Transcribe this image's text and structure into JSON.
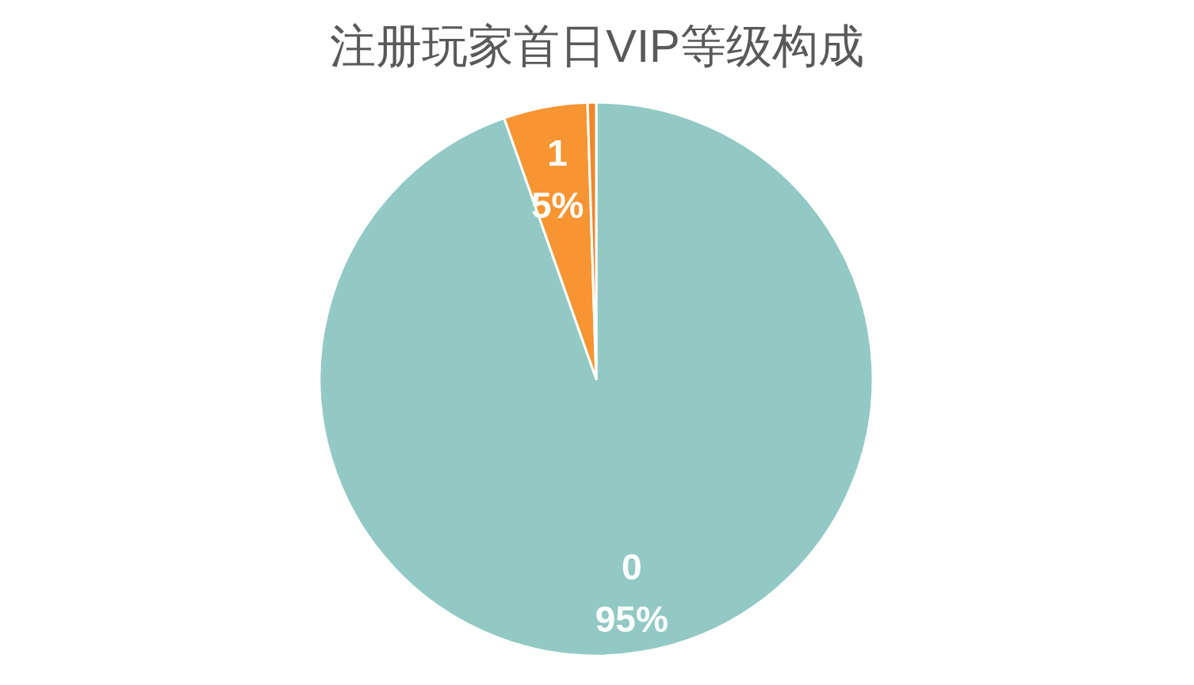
{
  "chart_data": {
    "type": "pie",
    "title": "注册玩家首日VIP等级构成",
    "categories": [
      "0",
      "1",
      null
    ],
    "values": [
      94.6,
      4.9,
      0.5
    ],
    "value_labels": [
      "95%",
      "5%",
      null
    ],
    "colors": [
      "#92c9c5",
      "#f79532",
      "#f0862b"
    ]
  }
}
